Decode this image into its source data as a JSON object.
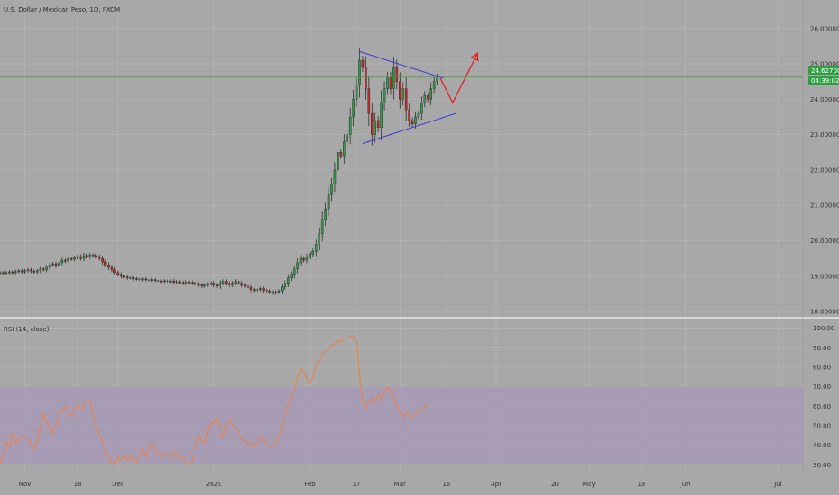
{
  "header": {
    "title": "U.S. Dollar / Mexican Peso, 1D, FXCM"
  },
  "rsi_header": {
    "title": "RSI (14, close)"
  },
  "price_badge": {
    "price": "24.62700",
    "countdown": "04:39:02"
  },
  "colors": {
    "background": "#a8a8a8",
    "grid": "#b5b5b5",
    "up_candle": "#2f9b47",
    "down_candle": "#c62828",
    "wick": "#222222",
    "price_line": "#3d9b3d",
    "price_badge": "#2ea043",
    "triangle": "#3b3bd9",
    "projection": "#e02222",
    "rsi_line": "#f08040",
    "rsi_band": "#a898b8",
    "separator": "#e8e8e8"
  },
  "chart_data": [
    {
      "type": "candlestick",
      "title": "U.S. Dollar / Mexican Peso, 1D, FXCM",
      "x_tick_labels": [
        "Nov",
        "18",
        "Dec",
        "2020",
        "Feb",
        "17",
        "Mar",
        "16",
        "Apr",
        "20",
        "May",
        "18",
        "Jun",
        "Jul"
      ],
      "x_tick_days": [
        0,
        17,
        30,
        61,
        92,
        107,
        121,
        136,
        152,
        171,
        182,
        199,
        213,
        243
      ],
      "y_tick_labels": [
        "18.00000",
        "19.00000",
        "20.00000",
        "21.00000",
        "22.00000",
        "23.00000",
        "24.00000",
        "25.00000",
        "26.00000"
      ],
      "ylim": [
        17.9,
        26.25
      ],
      "xlim": [
        -8,
        251
      ],
      "last_price": 24.627,
      "closes": [
        [
          -8,
          19.1
        ],
        [
          -7,
          19.08
        ],
        [
          -6,
          19.1
        ],
        [
          -5,
          19.12
        ],
        [
          -4,
          19.1
        ],
        [
          -3,
          19.13
        ],
        [
          -2,
          19.15
        ],
        [
          -1,
          19.12
        ],
        [
          0,
          19.15
        ],
        [
          1,
          19.18
        ],
        [
          2,
          19.14
        ],
        [
          3,
          19.12
        ],
        [
          4,
          19.15
        ],
        [
          5,
          19.2
        ],
        [
          6,
          19.18
        ],
        [
          7,
          19.25
        ],
        [
          8,
          19.32
        ],
        [
          9,
          19.35
        ],
        [
          10,
          19.3
        ],
        [
          11,
          19.38
        ],
        [
          12,
          19.45
        ],
        [
          13,
          19.42
        ],
        [
          14,
          19.5
        ],
        [
          15,
          19.48
        ],
        [
          16,
          19.52
        ],
        [
          17,
          19.55
        ],
        [
          18,
          19.5
        ],
        [
          19,
          19.58
        ],
        [
          20,
          19.55
        ],
        [
          21,
          19.6
        ],
        [
          22,
          19.58
        ],
        [
          23,
          19.55
        ],
        [
          24,
          19.5
        ],
        [
          25,
          19.4
        ],
        [
          26,
          19.32
        ],
        [
          27,
          19.25
        ],
        [
          28,
          19.18
        ],
        [
          29,
          19.1
        ],
        [
          30,
          19.05
        ],
        [
          31,
          19.0
        ],
        [
          32,
          18.98
        ],
        [
          33,
          18.95
        ],
        [
          34,
          18.95
        ],
        [
          35,
          18.93
        ],
        [
          36,
          18.92
        ],
        [
          37,
          18.9
        ],
        [
          38,
          18.92
        ],
        [
          39,
          18.9
        ],
        [
          40,
          18.88
        ],
        [
          41,
          18.9
        ],
        [
          42,
          18.88
        ],
        [
          43,
          18.86
        ],
        [
          44,
          18.85
        ],
        [
          45,
          18.87
        ],
        [
          46,
          18.85
        ],
        [
          47,
          18.86
        ],
        [
          48,
          18.82
        ],
        [
          49,
          18.84
        ],
        [
          50,
          18.82
        ],
        [
          51,
          18.8
        ],
        [
          52,
          18.83
        ],
        [
          53,
          18.82
        ],
        [
          54,
          18.8
        ],
        [
          55,
          18.78
        ],
        [
          56,
          18.75
        ],
        [
          57,
          18.72
        ],
        [
          58,
          18.75
        ],
        [
          59,
          18.78
        ],
        [
          60,
          18.8
        ],
        [
          61,
          18.75
        ],
        [
          62,
          18.72
        ],
        [
          63,
          18.8
        ],
        [
          64,
          18.85
        ],
        [
          65,
          18.8
        ],
        [
          66,
          18.75
        ],
        [
          67,
          18.8
        ],
        [
          68,
          18.85
        ],
        [
          69,
          18.8
        ],
        [
          70,
          18.75
        ],
        [
          71,
          18.72
        ],
        [
          72,
          18.68
        ],
        [
          73,
          18.62
        ],
        [
          74,
          18.6
        ],
        [
          75,
          18.62
        ],
        [
          76,
          18.65
        ],
        [
          77,
          18.6
        ],
        [
          78,
          18.58
        ],
        [
          79,
          18.55
        ],
        [
          80,
          18.52
        ],
        [
          81,
          18.55
        ],
        [
          82,
          18.58
        ],
        [
          83,
          18.7
        ],
        [
          84,
          18.8
        ],
        [
          85,
          18.95
        ],
        [
          86,
          19.05
        ],
        [
          87,
          19.2
        ],
        [
          88,
          19.38
        ],
        [
          89,
          19.5
        ],
        [
          90,
          19.45
        ],
        [
          91,
          19.55
        ],
        [
          92,
          19.62
        ],
        [
          93,
          19.7
        ],
        [
          94,
          19.9
        ],
        [
          95,
          20.2
        ],
        [
          96,
          20.6
        ],
        [
          97,
          20.9
        ],
        [
          98,
          21.3
        ],
        [
          99,
          21.6
        ],
        [
          100,
          22.0
        ],
        [
          101,
          22.5
        ],
        [
          102,
          22.4
        ],
        [
          103,
          22.8
        ],
        [
          104,
          23.0
        ],
        [
          105,
          23.5
        ],
        [
          106,
          24.0
        ],
        [
          107,
          24.4
        ],
        [
          108,
          25.1
        ],
        [
          109,
          24.9
        ],
        [
          110,
          24.3
        ],
        [
          111,
          23.6
        ],
        [
          112,
          23.0
        ],
        [
          113,
          23.4
        ],
        [
          114,
          23.2
        ],
        [
          115,
          23.9
        ],
        [
          116,
          24.3
        ],
        [
          117,
          24.6
        ],
        [
          118,
          24.3
        ],
        [
          119,
          24.9
        ],
        [
          120,
          24.5
        ],
        [
          121,
          24.0
        ],
        [
          122,
          24.3
        ],
        [
          123,
          23.7
        ],
        [
          124,
          23.4
        ],
        [
          125,
          23.3
        ],
        [
          126,
          23.5
        ],
        [
          127,
          23.6
        ],
        [
          128,
          23.9
        ],
        [
          129,
          24.1
        ],
        [
          130,
          24.0
        ],
        [
          131,
          24.3
        ],
        [
          132,
          24.5
        ],
        [
          133,
          24.627
        ]
      ],
      "triangle_upper": [
        [
          108,
          25.35
        ],
        [
          135,
          24.6
        ]
      ],
      "triangle_lower": [
        [
          109,
          22.75
        ],
        [
          139,
          23.6
        ]
      ],
      "projection": [
        [
          134,
          24.6
        ],
        [
          138,
          23.9
        ],
        [
          146,
          25.3
        ]
      ]
    },
    {
      "type": "line",
      "title": "RSI (14, close)",
      "y_tick_labels": [
        "30.00",
        "40.00",
        "50.00",
        "60.00",
        "70.00",
        "80.00",
        "90.00",
        "100.00"
      ],
      "ylim": [
        26,
        104
      ],
      "band": [
        30,
        70
      ],
      "values": [
        [
          -8,
          30
        ],
        [
          -7,
          35
        ],
        [
          -6,
          42
        ],
        [
          -5,
          39
        ],
        [
          -4,
          46
        ],
        [
          -3,
          41
        ],
        [
          -2,
          44
        ],
        [
          -1,
          45
        ],
        [
          0,
          44
        ],
        [
          1,
          43
        ],
        [
          2,
          40
        ],
        [
          3,
          38
        ],
        [
          4,
          42
        ],
        [
          5,
          50
        ],
        [
          6,
          56
        ],
        [
          7,
          52
        ],
        [
          8,
          49
        ],
        [
          9,
          46
        ],
        [
          10,
          50
        ],
        [
          11,
          55
        ],
        [
          12,
          58
        ],
        [
          13,
          60
        ],
        [
          14,
          56
        ],
        [
          15,
          55
        ],
        [
          16,
          58
        ],
        [
          17,
          61
        ],
        [
          18,
          58
        ],
        [
          19,
          60
        ],
        [
          20,
          63
        ],
        [
          21,
          62
        ],
        [
          22,
          55
        ],
        [
          23,
          49
        ],
        [
          24,
          45
        ],
        [
          25,
          42
        ],
        [
          26,
          36
        ],
        [
          27,
          34
        ],
        [
          28,
          30
        ],
        [
          29,
          31
        ],
        [
          30,
          34
        ],
        [
          31,
          32
        ],
        [
          32,
          35
        ],
        [
          33,
          32
        ],
        [
          34,
          35
        ],
        [
          35,
          33
        ],
        [
          36,
          31
        ],
        [
          37,
          35
        ],
        [
          38,
          38
        ],
        [
          39,
          34
        ],
        [
          40,
          39
        ],
        [
          41,
          41
        ],
        [
          42,
          37
        ],
        [
          43,
          36
        ],
        [
          44,
          34
        ],
        [
          45,
          36
        ],
        [
          46,
          35
        ],
        [
          47,
          34
        ],
        [
          48,
          37
        ],
        [
          49,
          36
        ],
        [
          50,
          33
        ],
        [
          51,
          34
        ],
        [
          52,
          31
        ],
        [
          53,
          30
        ],
        [
          54,
          32
        ],
        [
          55,
          40
        ],
        [
          56,
          45
        ],
        [
          57,
          42
        ],
        [
          58,
          41
        ],
        [
          59,
          47
        ],
        [
          60,
          52
        ],
        [
          61,
          51
        ],
        [
          62,
          54
        ],
        [
          63,
          48
        ],
        [
          64,
          44
        ],
        [
          65,
          50
        ],
        [
          66,
          53
        ],
        [
          67,
          51
        ],
        [
          68,
          49
        ],
        [
          69,
          46
        ],
        [
          70,
          43
        ],
        [
          71,
          42
        ],
        [
          72,
          40
        ],
        [
          73,
          41
        ],
        [
          74,
          40
        ],
        [
          75,
          42
        ],
        [
          76,
          44
        ],
        [
          77,
          42
        ],
        [
          78,
          41
        ],
        [
          79,
          39
        ],
        [
          80,
          40
        ],
        [
          81,
          42
        ],
        [
          82,
          44
        ],
        [
          83,
          50
        ],
        [
          84,
          56
        ],
        [
          85,
          61
        ],
        [
          86,
          65
        ],
        [
          87,
          69
        ],
        [
          88,
          75
        ],
        [
          89,
          79
        ],
        [
          90,
          78
        ],
        [
          91,
          74
        ],
        [
          92,
          72
        ],
        [
          93,
          75
        ],
        [
          94,
          81
        ],
        [
          95,
          84
        ],
        [
          96,
          86
        ],
        [
          97,
          88
        ],
        [
          98,
          89
        ],
        [
          99,
          91
        ],
        [
          100,
          92
        ],
        [
          101,
          94
        ],
        [
          102,
          93
        ],
        [
          103,
          95
        ],
        [
          104,
          95
        ],
        [
          105,
          96
        ],
        [
          106,
          96
        ],
        [
          107,
          94
        ],
        [
          108,
          75
        ],
        [
          109,
          62
        ],
        [
          110,
          59
        ],
        [
          111,
          62
        ],
        [
          112,
          64
        ],
        [
          113,
          62
        ],
        [
          114,
          66
        ],
        [
          115,
          64
        ],
        [
          116,
          67
        ],
        [
          117,
          70
        ],
        [
          118,
          68
        ],
        [
          119,
          65
        ],
        [
          120,
          60
        ],
        [
          121,
          57
        ],
        [
          122,
          55
        ],
        [
          123,
          57
        ],
        [
          124,
          55
        ],
        [
          125,
          54
        ],
        [
          126,
          56
        ],
        [
          127,
          57
        ],
        [
          128,
          58
        ],
        [
          129,
          60
        ],
        [
          130,
          61
        ]
      ]
    }
  ]
}
